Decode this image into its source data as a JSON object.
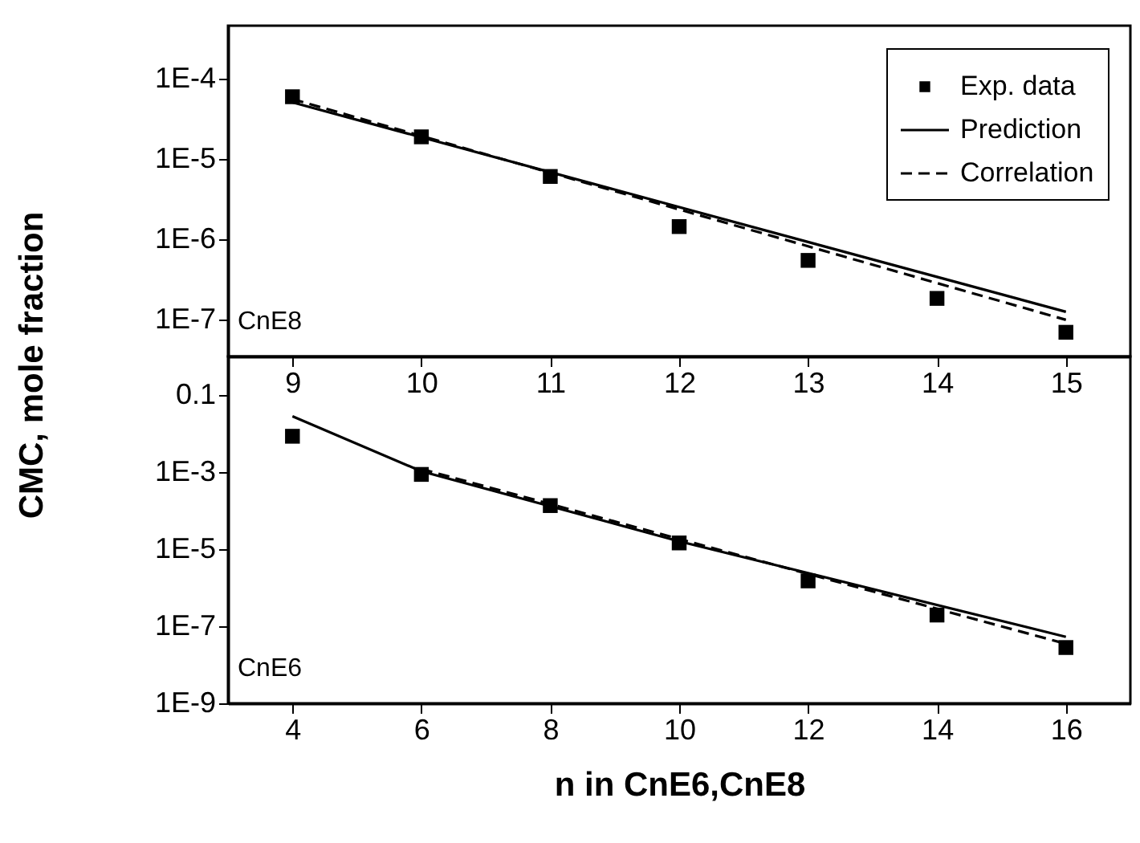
{
  "chart_data": [
    {
      "type": "scatter",
      "x": [
        9,
        10,
        11,
        12,
        13,
        14,
        15
      ],
      "log": "y",
      "legend": "top right",
      "ylabel": "CMC, mole fraction",
      "annotations": [
        "CnE8"
      ],
      "xlim": [
        8.5,
        15.5
      ],
      "xticks": [
        9,
        10,
        11,
        12,
        13,
        14,
        15
      ],
      "ylim": [
        3.5e-08,
        0.00046
      ],
      "yticks": [
        {
          "value": 1e-07,
          "label": "1E-7"
        },
        {
          "value": 1e-06,
          "label": "1E-6"
        },
        {
          "value": 1e-05,
          "label": "1E-5"
        },
        {
          "value": 0.0001,
          "label": "1E-4"
        }
      ],
      "series": [
        {
          "name": "Exp. data",
          "type": "scatter",
          "marker": "square",
          "color": "#000000",
          "values": [
            6e-05,
            1.9e-05,
            6.1e-06,
            1.45e-06,
            5.5e-07,
            1.85e-07,
            7e-08
          ]
        },
        {
          "name": "Prediction",
          "type": "line",
          "marker": "none",
          "color": "#000000",
          "line_style": "solid",
          "x": [
            9,
            15
          ],
          "values": [
            5.1e-05,
            1.26e-07
          ]
        },
        {
          "name": "Correlation",
          "type": "line",
          "marker": "none",
          "color": "#000000",
          "line_style": "dashed",
          "x": [
            9,
            15
          ],
          "values": [
            5.6e-05,
            1e-07
          ]
        }
      ]
    },
    {
      "type": "scatter",
      "x": [
        4,
        6,
        8,
        10,
        12,
        14,
        16
      ],
      "log": "y",
      "xlabel": "n in CnE6,CnE8",
      "annotations": [
        "CnE6"
      ],
      "xlim": [
        3,
        17
      ],
      "xticks": [
        4,
        6,
        8,
        10,
        12,
        14,
        16
      ],
      "ylim": [
        1e-09,
        1
      ],
      "yticks": [
        {
          "value": 1e-09,
          "label": "1E-9"
        },
        {
          "value": 1e-07,
          "label": "1E-7"
        },
        {
          "value": 1e-05,
          "label": "1E-5"
        },
        {
          "value": 0.001,
          "label": "1E-3"
        },
        0.1
      ],
      "series": [
        {
          "type": "scatter",
          "marker": "square",
          "color": "#000000",
          "values": [
            0.0085,
            0.00087,
            0.000135,
            1.45e-05,
            1.5e-06,
            1.95e-07,
            2.8e-08
          ]
        },
        {
          "type": "line",
          "marker": "none",
          "color": "#000000",
          "line_style": "solid",
          "x": [
            4,
            6,
            10,
            16
          ],
          "values": [
            0.028,
            0.00105,
            1.6e-05,
            5.3e-08
          ]
        },
        {
          "type": "line",
          "marker": "none",
          "color": "#000000",
          "line_style": "dashed",
          "x": [
            6,
            16
          ],
          "values": [
            0.0012,
            3.5e-08
          ]
        }
      ]
    }
  ]
}
